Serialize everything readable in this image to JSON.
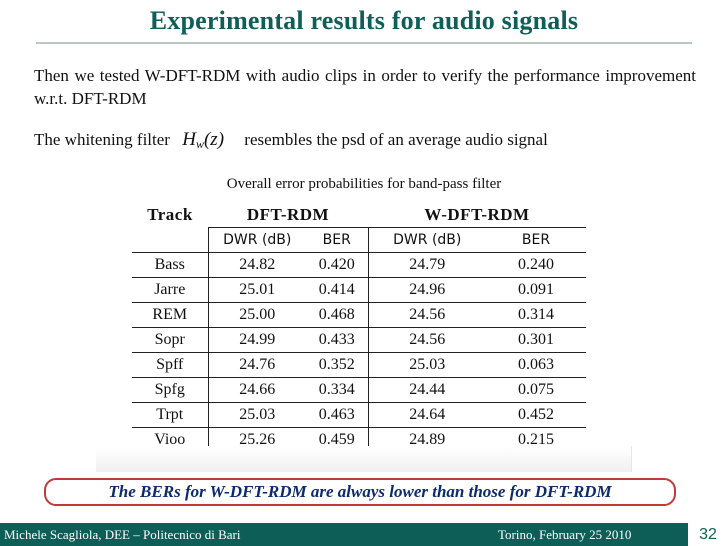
{
  "slide": {
    "title": "Experimental results for audio signals",
    "paragraph": "Then we  tested W-DFT-RDM with audio clips in order to verify the performance improvement w.r.t. DFT-RDM",
    "filter_prefix": "The whitening filter",
    "filter_math_base": "H",
    "filter_math_sub": "w",
    "filter_math_arg": "(z)",
    "filter_suffix": "resembles the psd of an average audio signal",
    "highlight": "The BERs for W-DFT-RDM are always lower than those for DFT-RDM"
  },
  "table": {
    "caption": "Overall error probabilities for band-pass filter",
    "header_track": "Track",
    "group1": "DFT-RDM",
    "group2": "W-DFT-RDM",
    "sub_dwr": "DWR (dB)",
    "sub_ber": "BER",
    "rows": [
      {
        "track": "Bass",
        "dwr1": "24.82",
        "ber1": "0.420",
        "dwr2": "24.79",
        "ber2": "0.240"
      },
      {
        "track": "Jarre",
        "dwr1": "25.01",
        "ber1": "0.414",
        "dwr2": "24.96",
        "ber2": "0.091"
      },
      {
        "track": "REM",
        "dwr1": "25.00",
        "ber1": "0.468",
        "dwr2": "24.56",
        "ber2": "0.314"
      },
      {
        "track": "Sopr",
        "dwr1": "24.99",
        "ber1": "0.433",
        "dwr2": "24.56",
        "ber2": "0.301"
      },
      {
        "track": "Spff",
        "dwr1": "24.76",
        "ber1": "0.352",
        "dwr2": "25.03",
        "ber2": "0.063"
      },
      {
        "track": "Spfg",
        "dwr1": "24.66",
        "ber1": "0.334",
        "dwr2": "24.44",
        "ber2": "0.075"
      },
      {
        "track": "Trpt",
        "dwr1": "25.03",
        "ber1": "0.463",
        "dwr2": "24.64",
        "ber2": "0.452"
      },
      {
        "track": "Vioo",
        "dwr1": "25.26",
        "ber1": "0.459",
        "dwr2": "24.89",
        "ber2": "0.215"
      }
    ]
  },
  "footer": {
    "author": "Michele Scagliola, DEE – Politecnico di Bari",
    "place_date": "Torino, February 25 2010",
    "page_number": "32"
  },
  "colors": {
    "title": "#0f5e58",
    "footer_bg": "#0d5e57",
    "highlight_border": "#c13a3a",
    "highlight_text": "#0c2a6e"
  }
}
